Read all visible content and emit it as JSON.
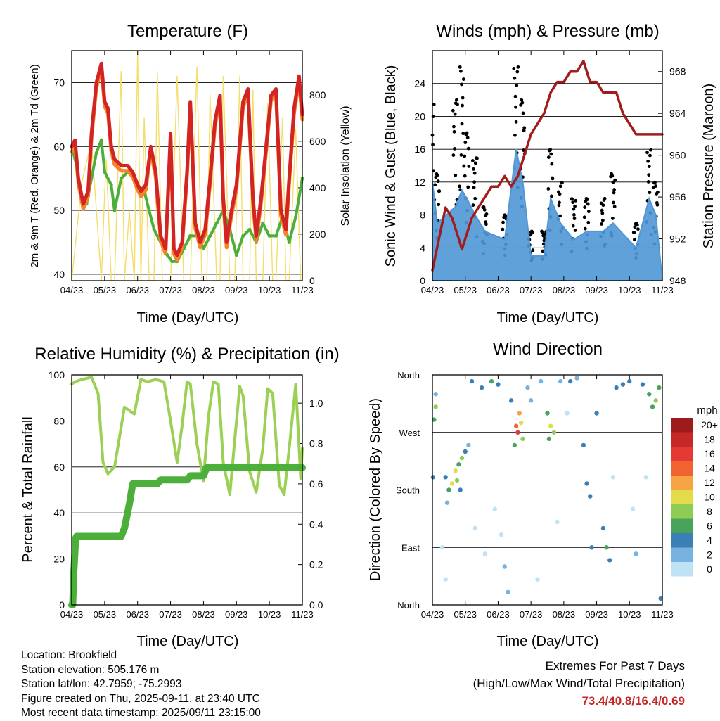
{
  "charts": {
    "temp": {
      "title": "Temperature (F)",
      "ylabel_left": "2m & 9m T (Red, Orange) & 2m Td (Green)",
      "ylabel_right": "Solar Insolation (Yellow)",
      "xlabel": "Time (Day/UTC)"
    },
    "wind": {
      "title": "Winds (mph) & Pressure (mb)",
      "ylabel_left": "Sonic Wind & Gust (Blue, Black)",
      "ylabel_right": "Station Pressure (Maroon)",
      "xlabel": "Time (Day/UTC)"
    },
    "rh": {
      "title": "Relative Humidity (%) & Precipitation (in)",
      "ylabel_left": "Percent & Total Rainfall",
      "xlabel": "Time (Day/UTC)"
    },
    "dir": {
      "title": "Wind Direction",
      "ylabel_left": "Direction (Colored By Speed)",
      "xlabel": "Time (Day/UTC)",
      "legend_title": "mph"
    }
  },
  "footer": {
    "location": "Location: Brookfield",
    "elevation": "Station elevation: 505.176 m",
    "latlon": "Station lat/lon: 42.7959; -75.2993",
    "created": "Figure created on Thu, 2025-09-11, at 23:40 UTC",
    "recent": "Most recent data timestamp: 2025/09/11 23:15:00",
    "extremes_title": "Extremes For Past 7 Days",
    "extremes_sub": "(High/Low/Max Wind/Total Precipitation)",
    "extremes_values": "73.4/40.8/16.4/0.69"
  },
  "colors": {
    "temp2m": "#d42323",
    "temp9m": "#f4832a",
    "dewpoint": "#4caf3a",
    "solar": "#f5dd6a",
    "wind": "#4f97d6",
    "gust": "#000000",
    "pressure": "#a11c1c",
    "rh": "#9bd054",
    "precip": "#4caf3a"
  },
  "chart_data": [
    {
      "id": "temp",
      "type": "line",
      "x_tick_labels": [
        "04/23",
        "05/23",
        "06/23",
        "07/23",
        "08/23",
        "09/23",
        "10/23",
        "11/23"
      ],
      "y_left_ticks": [
        40,
        50,
        60,
        70
      ],
      "y_left_range": [
        39,
        75
      ],
      "y_right_ticks": [
        0,
        200,
        400,
        600,
        800
      ],
      "y_right_range": [
        0,
        990
      ],
      "series": [
        {
          "key": "solar",
          "axis": "right",
          "x": [
            0,
            0.3,
            0.6,
            0.9,
            1.0,
            1.05,
            1.2,
            1.3,
            1.5,
            1.6,
            1.75,
            1.9,
            2.0,
            2.1,
            2.2,
            2.35,
            2.5,
            2.6,
            2.75,
            3.0,
            3.2,
            3.4,
            3.6,
            3.8,
            3.95,
            4.1,
            4.2,
            4.4,
            4.5,
            4.6,
            4.8,
            4.95,
            5.1,
            5.2,
            5.4,
            5.5,
            5.6,
            5.8,
            5.95,
            6.1,
            6.2,
            6.4,
            6.5,
            6.6,
            6.8,
            6.95,
            7.0
          ],
          "y": [
            0,
            420,
            600,
            0,
            380,
            520,
            0,
            0,
            900,
            0,
            300,
            0,
            990,
            0,
            700,
            0,
            0,
            900,
            0,
            0,
            880,
            0,
            0,
            920,
            0,
            0,
            800,
            0,
            0,
            880,
            0,
            0,
            880,
            0,
            0,
            820,
            0,
            0,
            760,
            0,
            0,
            700,
            0,
            0,
            650,
            0,
            0
          ]
        },
        {
          "key": "temp2m",
          "axis": "left",
          "x": [
            0,
            0.1,
            0.2,
            0.35,
            0.5,
            0.6,
            0.75,
            0.9,
            1.0,
            1.1,
            1.2,
            1.3,
            1.5,
            1.7,
            1.85,
            2.0,
            2.1,
            2.25,
            2.4,
            2.55,
            2.7,
            2.85,
            3.0,
            3.1,
            3.2,
            3.35,
            3.5,
            3.6,
            3.75,
            3.9,
            4.05,
            4.2,
            4.35,
            4.5,
            4.6,
            4.7,
            4.85,
            5.0,
            5.2,
            5.35,
            5.5,
            5.6,
            5.75,
            5.9,
            6.05,
            6.2,
            6.35,
            6.5,
            6.6,
            6.75,
            6.9,
            7.0
          ],
          "y": [
            60,
            61,
            55,
            51,
            53,
            62,
            70,
            73,
            67,
            66,
            60,
            58,
            57,
            57,
            56,
            54,
            53,
            54,
            60,
            56,
            46,
            44,
            62,
            44,
            43,
            45,
            56,
            67,
            48,
            45,
            47,
            55,
            64,
            68,
            52,
            45,
            50,
            54,
            67,
            69,
            52,
            46,
            52,
            60,
            68,
            69,
            50,
            47,
            55,
            66,
            71,
            65
          ]
        },
        {
          "key": "dewpoint",
          "axis": "left",
          "x": [
            0,
            0.15,
            0.3,
            0.45,
            0.6,
            0.75,
            0.9,
            1.0,
            1.2,
            1.3,
            1.5,
            1.7,
            1.9,
            2.0,
            2.2,
            2.35,
            2.5,
            2.7,
            2.9,
            3.05,
            3.2,
            3.4,
            3.6,
            3.8,
            4.0,
            4.2,
            4.4,
            4.6,
            4.8,
            5.0,
            5.2,
            5.4,
            5.6,
            5.8,
            6.0,
            6.2,
            6.4,
            6.6,
            6.8,
            7.0
          ],
          "y": [
            60,
            57,
            52,
            51,
            55,
            59,
            61,
            56,
            54,
            50,
            55,
            56,
            55,
            54,
            53,
            50,
            47,
            45,
            43,
            42,
            42,
            44,
            46,
            46,
            44,
            46,
            48,
            50,
            47,
            43,
            46,
            47,
            45,
            48,
            46,
            46,
            49,
            45,
            49,
            55
          ]
        }
      ]
    },
    {
      "id": "wind",
      "type": "scatter",
      "x_tick_labels": [
        "04/23",
        "05/23",
        "06/23",
        "07/23",
        "08/23",
        "09/23",
        "10/23",
        "11/23"
      ],
      "y_left_ticks": [
        0,
        4,
        8,
        12,
        16,
        20,
        24
      ],
      "y_left_range": [
        0,
        28
      ],
      "y_right_ticks": [
        948,
        952,
        956,
        960,
        964,
        968
      ],
      "y_right_range": [
        948,
        970
      ],
      "series": [
        {
          "key": "pressure",
          "axis": "right",
          "x": [
            0,
            0.2,
            0.4,
            0.6,
            0.8,
            0.9,
            1.0,
            1.1,
            1.2,
            1.4,
            1.6,
            1.8,
            2.0,
            2.2,
            2.4,
            2.6,
            2.8,
            3.0,
            3.2,
            3.4,
            3.6,
            3.8,
            4.0,
            4.2,
            4.4,
            4.6,
            4.8,
            5.0,
            5.2,
            5.4,
            5.6,
            5.8,
            6.0,
            6.2,
            6.4,
            6.6,
            6.8,
            7.0
          ],
          "y": [
            949,
            952,
            955,
            954,
            952,
            951,
            952,
            953,
            954,
            955,
            956,
            957,
            957,
            958,
            957,
            958,
            960,
            962,
            963,
            964,
            966,
            967,
            967,
            968,
            968,
            969,
            967,
            967,
            966,
            966,
            966,
            964,
            963,
            962,
            962,
            962,
            962,
            962
          ]
        },
        {
          "key": "gust_peaks",
          "axis": "left",
          "x": [
            0,
            0.15,
            0.7,
            0.9,
            1.05,
            1.3,
            1.6,
            2.2,
            2.55,
            2.75,
            3.0,
            3.4,
            3.6,
            3.9,
            4.3,
            4.7,
            5.2,
            5.5,
            6.2,
            6.6,
            6.8
          ],
          "y": [
            22,
            13,
            22,
            26,
            18,
            15,
            9,
            8,
            26,
            22,
            6,
            6,
            16,
            12,
            10,
            10,
            10,
            13,
            7,
            16,
            12
          ]
        },
        {
          "key": "wind_peaks",
          "axis": "left",
          "x": [
            0,
            0.15,
            0.7,
            0.9,
            1.05,
            1.3,
            1.6,
            2.2,
            2.55,
            2.75,
            3.0,
            3.4,
            3.6,
            3.9,
            4.3,
            4.7,
            5.2,
            5.5,
            6.2,
            6.6,
            6.8
          ],
          "y": [
            12,
            7,
            9,
            11,
            10,
            8,
            6,
            5,
            16,
            12,
            3,
            3,
            10,
            7,
            5,
            6,
            6,
            7,
            4,
            10,
            8
          ]
        }
      ]
    },
    {
      "id": "rh",
      "type": "line",
      "x_tick_labels": [
        "04/23",
        "05/23",
        "06/23",
        "07/23",
        "08/23",
        "09/23",
        "10/23",
        "11/23"
      ],
      "y_left_ticks": [
        0,
        20,
        40,
        60,
        80,
        100
      ],
      "y_left_range": [
        0,
        100
      ],
      "y_right_ticks": [
        0.0,
        0.2,
        0.4,
        0.6,
        0.8,
        1.0
      ],
      "y_right_range": [
        0,
        1.14
      ],
      "series": [
        {
          "key": "rh",
          "axis": "left",
          "x": [
            0,
            0.1,
            0.3,
            0.6,
            0.8,
            0.95,
            1.1,
            1.3,
            1.6,
            1.9,
            2.1,
            2.3,
            2.55,
            2.8,
            3.0,
            3.2,
            3.35,
            3.5,
            3.6,
            3.8,
            4.0,
            4.15,
            4.3,
            4.45,
            4.6,
            4.8,
            4.95,
            5.1,
            5.2,
            5.4,
            5.6,
            5.8,
            5.95,
            6.1,
            6.3,
            6.45,
            6.6,
            6.8,
            6.95,
            7.0
          ],
          "y": [
            96,
            97,
            98,
            99,
            92,
            62,
            57,
            60,
            86,
            83,
            98,
            97,
            98,
            97,
            80,
            62,
            78,
            97,
            96,
            70,
            54,
            82,
            97,
            96,
            62,
            48,
            72,
            95,
            91,
            58,
            49,
            68,
            94,
            92,
            52,
            48,
            68,
            96,
            55,
            68
          ]
        },
        {
          "key": "precip",
          "axis": "right",
          "x": [
            0,
            0.03,
            0.06,
            0.12,
            0.15,
            1.5,
            1.6,
            1.75,
            1.85,
            2.6,
            2.7,
            3.5,
            3.6,
            4.0,
            4.1,
            7.0
          ],
          "y": [
            0,
            0,
            0.15,
            0.33,
            0.34,
            0.34,
            0.38,
            0.5,
            0.6,
            0.6,
            0.62,
            0.62,
            0.64,
            0.64,
            0.68,
            0.68
          ]
        }
      ]
    },
    {
      "id": "dir",
      "type": "scatter",
      "x_tick_labels": [
        "04/23",
        "05/23",
        "06/23",
        "07/23",
        "08/23",
        "09/23",
        "10/23",
        "11/23"
      ],
      "y_tick_labels": [
        "North",
        "East",
        "South",
        "West",
        "North"
      ],
      "y_range": [
        0,
        360
      ],
      "legend_labels": [
        "20+",
        "18",
        "16",
        "14",
        "12",
        "10",
        "8",
        "6",
        "4",
        "2",
        "0"
      ],
      "legend_colors": [
        "#9e1b1b",
        "#c62828",
        "#e53935",
        "#f06230",
        "#f7a445",
        "#e2dc4a",
        "#8fcc55",
        "#4aa35a",
        "#3b7fb6",
        "#78b3e0",
        "#bfe3f5"
      ],
      "points": [
        {
          "x": 0.05,
          "dir": 290,
          "spd": 6
        },
        {
          "x": 0.1,
          "dir": 310,
          "spd": 8
        },
        {
          "x": 0.02,
          "dir": 200,
          "spd": 4
        },
        {
          "x": 0.1,
          "dir": 330,
          "spd": 2
        },
        {
          "x": 0.4,
          "dir": 200,
          "spd": 4
        },
        {
          "x": 0.5,
          "dir": 180,
          "spd": 6
        },
        {
          "x": 0.6,
          "dir": 190,
          "spd": 10
        },
        {
          "x": 0.7,
          "dir": 210,
          "spd": 10
        },
        {
          "x": 0.75,
          "dir": 195,
          "spd": 8
        },
        {
          "x": 0.8,
          "dir": 220,
          "spd": 6
        },
        {
          "x": 0.85,
          "dir": 180,
          "spd": 4
        },
        {
          "x": 0.9,
          "dir": 230,
          "spd": 8
        },
        {
          "x": 0.45,
          "dir": 160,
          "spd": 2
        },
        {
          "x": 1.0,
          "dir": 240,
          "spd": 4
        },
        {
          "x": 1.1,
          "dir": 250,
          "spd": 2
        },
        {
          "x": 1.2,
          "dir": 350,
          "spd": 4
        },
        {
          "x": 1.5,
          "dir": 340,
          "spd": 4
        },
        {
          "x": 1.8,
          "dir": 350,
          "spd": 6
        },
        {
          "x": 2.0,
          "dir": 345,
          "spd": 4
        },
        {
          "x": 2.2,
          "dir": 60,
          "spd": 2
        },
        {
          "x": 2.3,
          "dir": 20,
          "spd": 2
        },
        {
          "x": 2.4,
          "dir": 320,
          "spd": 4
        },
        {
          "x": 2.55,
          "dir": 280,
          "spd": 14
        },
        {
          "x": 2.6,
          "dir": 270,
          "spd": 16
        },
        {
          "x": 2.65,
          "dir": 300,
          "spd": 12
        },
        {
          "x": 2.7,
          "dir": 285,
          "spd": 10
        },
        {
          "x": 2.75,
          "dir": 260,
          "spd": 8
        },
        {
          "x": 2.5,
          "dir": 250,
          "spd": 6
        },
        {
          "x": 2.9,
          "dir": 340,
          "spd": 2
        },
        {
          "x": 3.0,
          "dir": 320,
          "spd": 2
        },
        {
          "x": 3.3,
          "dir": 350,
          "spd": 2
        },
        {
          "x": 3.5,
          "dir": 300,
          "spd": 6
        },
        {
          "x": 3.6,
          "dir": 280,
          "spd": 10
        },
        {
          "x": 3.7,
          "dir": 270,
          "spd": 8
        },
        {
          "x": 3.55,
          "dir": 260,
          "spd": 6
        },
        {
          "x": 3.9,
          "dir": 350,
          "spd": 2
        },
        {
          "x": 4.2,
          "dir": 350,
          "spd": 4
        },
        {
          "x": 4.4,
          "dir": 355,
          "spd": 2
        },
        {
          "x": 4.6,
          "dir": 250,
          "spd": 4
        },
        {
          "x": 4.7,
          "dir": 190,
          "spd": 4
        },
        {
          "x": 4.8,
          "dir": 170,
          "spd": 4
        },
        {
          "x": 4.85,
          "dir": 90,
          "spd": 4
        },
        {
          "x": 5.0,
          "dir": 300,
          "spd": 4
        },
        {
          "x": 5.2,
          "dir": 120,
          "spd": 4
        },
        {
          "x": 5.3,
          "dir": 90,
          "spd": 6
        },
        {
          "x": 5.4,
          "dir": 70,
          "spd": 4
        },
        {
          "x": 5.6,
          "dir": 340,
          "spd": 4
        },
        {
          "x": 5.8,
          "dir": 345,
          "spd": 4
        },
        {
          "x": 6.0,
          "dir": 350,
          "spd": 4
        },
        {
          "x": 6.2,
          "dir": 80,
          "spd": 2
        },
        {
          "x": 6.4,
          "dir": 345,
          "spd": 4
        },
        {
          "x": 6.6,
          "dir": 330,
          "spd": 6
        },
        {
          "x": 6.7,
          "dir": 310,
          "spd": 6
        },
        {
          "x": 6.8,
          "dir": 320,
          "spd": 8
        },
        {
          "x": 6.9,
          "dir": 340,
          "spd": 6
        },
        {
          "x": 6.95,
          "dir": 10,
          "spd": 4
        },
        {
          "x": 0.3,
          "dir": 90,
          "spd": 0
        },
        {
          "x": 0.4,
          "dir": 40,
          "spd": 0
        },
        {
          "x": 1.3,
          "dir": 120,
          "spd": 0
        },
        {
          "x": 1.6,
          "dir": 80,
          "spd": 0
        },
        {
          "x": 1.9,
          "dir": 150,
          "spd": 0
        },
        {
          "x": 2.1,
          "dir": 110,
          "spd": 0
        },
        {
          "x": 3.2,
          "dir": 40,
          "spd": 0
        },
        {
          "x": 3.8,
          "dir": 130,
          "spd": 0
        },
        {
          "x": 4.1,
          "dir": 300,
          "spd": 0
        },
        {
          "x": 5.5,
          "dir": 200,
          "spd": 0
        },
        {
          "x": 6.1,
          "dir": 150,
          "spd": 0
        },
        {
          "x": 6.5,
          "dir": 200,
          "spd": 0
        }
      ]
    }
  ]
}
